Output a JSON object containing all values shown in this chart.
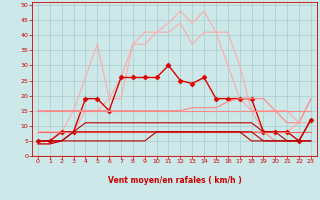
{
  "bg_color": "#cce8e8",
  "grid_color": "#aacccc",
  "xlabel": "Vent moyen/en rafales ( km/h )",
  "x_ticks": [
    0,
    1,
    2,
    3,
    4,
    5,
    6,
    7,
    8,
    9,
    10,
    11,
    12,
    13,
    14,
    15,
    16,
    17,
    18,
    19,
    20,
    21,
    22,
    23
  ],
  "ylim": [
    0,
    51
  ],
  "y_ticks": [
    0,
    5,
    10,
    15,
    20,
    25,
    30,
    35,
    40,
    45,
    50
  ],
  "lines": [
    {
      "color": "#ffaaaa",
      "lw": 0.8,
      "marker": null,
      "y": [
        5,
        5,
        8,
        8,
        15,
        15,
        19,
        19,
        37,
        37,
        41,
        44,
        48,
        44,
        48,
        41,
        41,
        30,
        15,
        15,
        15,
        15,
        11,
        19
      ]
    },
    {
      "color": "#ffaaaa",
      "lw": 0.8,
      "marker": null,
      "y": [
        8,
        8,
        8,
        15,
        26,
        37,
        19,
        26,
        37,
        41,
        41,
        41,
        44,
        37,
        41,
        41,
        30,
        19,
        15,
        8,
        8,
        8,
        11,
        11
      ]
    },
    {
      "color": "#dd0000",
      "lw": 1.0,
      "marker": "D",
      "markersize": 2.5,
      "y": [
        5,
        5,
        8,
        8,
        19,
        19,
        15,
        26,
        26,
        26,
        26,
        30,
        25,
        24,
        26,
        19,
        19,
        19,
        19,
        8,
        8,
        8,
        5,
        12
      ]
    },
    {
      "color": "#ff6666",
      "lw": 0.8,
      "marker": null,
      "y": [
        8,
        8,
        8,
        8,
        8,
        8,
        8,
        8,
        8,
        8,
        8,
        8,
        8,
        8,
        8,
        8,
        8,
        8,
        8,
        8,
        8,
        8,
        8,
        8
      ]
    },
    {
      "color": "#ff8888",
      "lw": 0.8,
      "marker": null,
      "y": [
        4,
        4,
        5,
        8,
        8,
        8,
        8,
        8,
        8,
        8,
        8,
        8,
        8,
        8,
        8,
        8,
        8,
        8,
        8,
        8,
        5,
        5,
        5,
        5
      ]
    },
    {
      "color": "#bb0000",
      "lw": 0.8,
      "marker": null,
      "y": [
        5,
        5,
        5,
        8,
        8,
        8,
        8,
        8,
        8,
        8,
        8,
        8,
        8,
        8,
        8,
        8,
        8,
        8,
        8,
        5,
        5,
        5,
        5,
        5
      ]
    },
    {
      "color": "#bb0000",
      "lw": 0.8,
      "marker": null,
      "y": [
        5,
        5,
        5,
        5,
        5,
        5,
        5,
        5,
        5,
        5,
        8,
        8,
        8,
        8,
        8,
        8,
        8,
        8,
        5,
        5,
        5,
        5,
        5,
        5
      ]
    },
    {
      "color": "#ff8888",
      "lw": 0.8,
      "marker": null,
      "y": [
        15,
        15,
        15,
        15,
        15,
        15,
        15,
        15,
        15,
        15,
        15,
        15,
        15,
        15,
        15,
        15,
        15,
        15,
        15,
        15,
        15,
        15,
        15,
        15
      ]
    },
    {
      "color": "#ff8888",
      "lw": 0.8,
      "marker": null,
      "y": [
        15,
        15,
        15,
        15,
        15,
        15,
        15,
        15,
        15,
        15,
        15,
        15,
        15,
        16,
        16,
        16,
        18,
        19,
        19,
        19,
        15,
        11,
        11,
        19
      ]
    },
    {
      "color": "#bb0000",
      "lw": 0.8,
      "marker": null,
      "y": [
        4,
        4,
        5,
        8,
        11,
        11,
        11,
        11,
        11,
        11,
        11,
        11,
        11,
        11,
        11,
        11,
        11,
        11,
        11,
        8,
        8,
        5,
        5,
        12
      ]
    }
  ],
  "arrows": [
    "↗",
    "→",
    "↗",
    "↑",
    "↗",
    "↗",
    "↗",
    "→",
    "↗",
    "↗",
    "↑",
    "↗",
    "↗",
    "↗",
    "↗",
    "↗",
    "↗",
    "↑",
    "↗",
    "↗",
    "↗",
    "↗",
    "↙",
    "↗"
  ]
}
